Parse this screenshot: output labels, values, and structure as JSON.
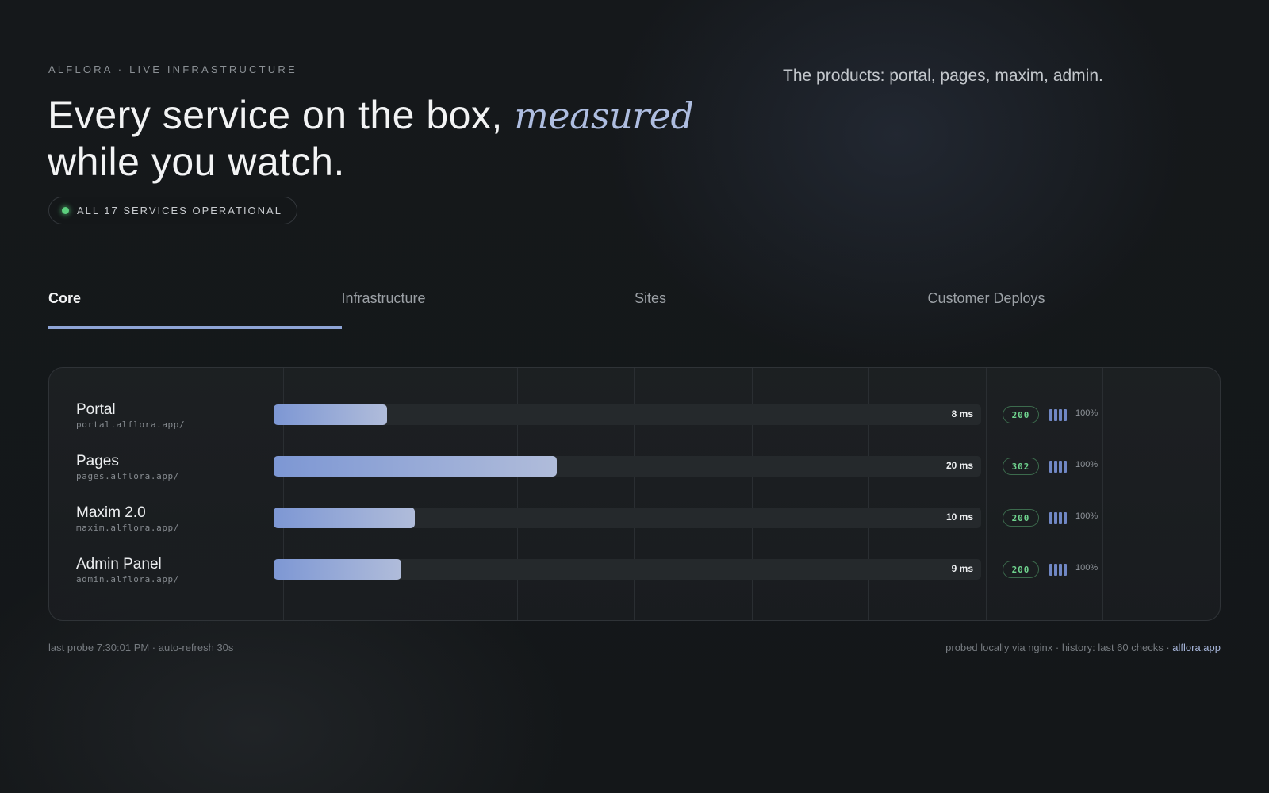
{
  "header": {
    "eyebrow": "ALFLORA · LIVE INFRASTRUCTURE",
    "headline_part1": "Every service on the box, ",
    "headline_accent": "measured",
    "headline_part2": "while you watch.",
    "status_text": "ALL 17 SERVICES OPERATIONAL",
    "products_text": "The products: portal, pages, maxim, admin."
  },
  "tabs": [
    {
      "label": "Core",
      "active": true
    },
    {
      "label": "Infrastructure",
      "active": false
    },
    {
      "label": "Sites",
      "active": false
    },
    {
      "label": "Customer Deploys",
      "active": false
    }
  ],
  "services": [
    {
      "name": "Portal",
      "url": "portal.alflora.app/",
      "latency": "8 ms",
      "latency_ms": 8,
      "code": "200",
      "uptime": "100%"
    },
    {
      "name": "Pages",
      "url": "pages.alflora.app/",
      "latency": "20 ms",
      "latency_ms": 20,
      "code": "302",
      "uptime": "100%"
    },
    {
      "name": "Maxim 2.0",
      "url": "maxim.alflora.app/",
      "latency": "10 ms",
      "latency_ms": 10,
      "code": "200",
      "uptime": "100%"
    },
    {
      "name": "Admin Panel",
      "url": "admin.alflora.app/",
      "latency": "9 ms",
      "latency_ms": 9,
      "code": "200",
      "uptime": "100%"
    }
  ],
  "latency_scale_max_ms": 50,
  "footer": {
    "left": "last probe 7:30:01 PM · auto-refresh 30s",
    "right_prefix": "probed locally via nginx · history: last 60 checks · ",
    "right_link": "alflora.app"
  },
  "colors": {
    "accent": "#aebde0",
    "bar_start": "#7d97d4",
    "bar_end": "#b0bcda",
    "ok_green": "#5ccf7e"
  }
}
